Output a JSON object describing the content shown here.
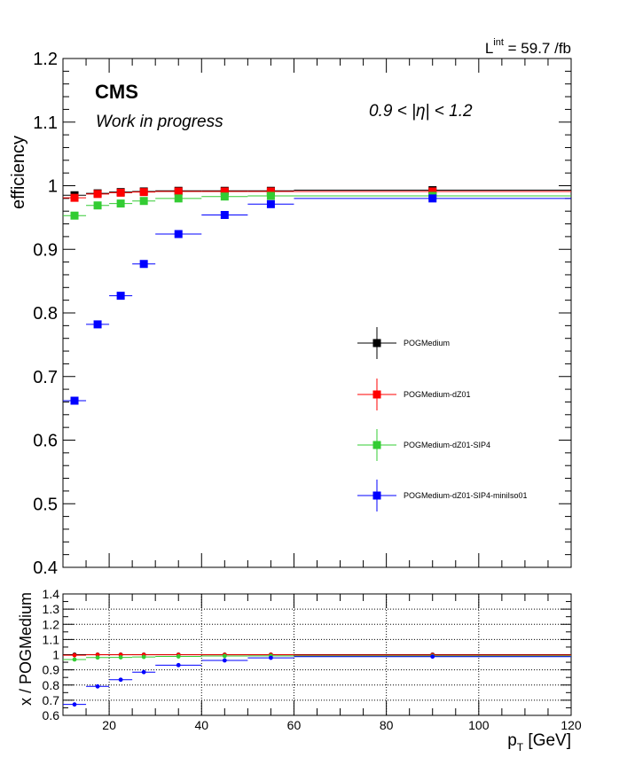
{
  "chart_data": [
    {
      "type": "scatter",
      "panel": "efficiency",
      "ylabel": "efficiency",
      "ylim": [
        0.4,
        1.2
      ],
      "xlim": [
        10,
        120
      ],
      "yticks": [
        "0.4",
        "0.5",
        "0.6",
        "0.7",
        "0.8",
        "0.9",
        "1",
        "1.1",
        "1.2"
      ],
      "lumi_label": "L",
      "lumi_sup": "int",
      "lumi_value": " = 59.7 /fb",
      "experiment": "CMS",
      "status": "Work in progress",
      "eta_label": "0.9 < |η| < 1.2",
      "legend_placement": "right-center",
      "bins": [
        [
          10,
          15
        ],
        [
          15,
          20
        ],
        [
          20,
          25
        ],
        [
          25,
          30
        ],
        [
          30,
          40
        ],
        [
          40,
          50
        ],
        [
          50,
          60
        ],
        [
          60,
          120
        ]
      ],
      "series": [
        {
          "name": "POGMedium",
          "color": "#000000",
          "values": [
            0.985,
            0.988,
            0.99,
            0.991,
            0.992,
            0.992,
            0.992,
            0.993
          ]
        },
        {
          "name": "POGMedium-dZ01",
          "color": "#ff0000",
          "values": [
            0.981,
            0.987,
            0.989,
            0.99,
            0.991,
            0.991,
            0.991,
            0.991
          ]
        },
        {
          "name": "POGMedium-dZ01-SIP4",
          "color": "#33cc33",
          "values": [
            0.953,
            0.969,
            0.972,
            0.976,
            0.98,
            0.983,
            0.984,
            0.984
          ]
        },
        {
          "name": "POGMedium-dZ01-SIP4-miniIso01",
          "color": "#0000ff",
          "values": [
            0.662,
            0.782,
            0.827,
            0.877,
            0.924,
            0.954,
            0.971,
            0.98
          ]
        }
      ]
    },
    {
      "type": "scatter",
      "panel": "ratio",
      "ylabel": "x / POGMedium",
      "ylim": [
        0.6,
        1.4
      ],
      "xlim": [
        10,
        120
      ],
      "xlabel_main": "p",
      "xlabel_sub": "T",
      "xlabel_unit": " [GeV]",
      "xticks": [
        "20",
        "40",
        "60",
        "80",
        "100",
        "120"
      ],
      "yticks": [
        "0.6",
        "0.7",
        "0.8",
        "0.9",
        "1",
        "1.1",
        "1.2",
        "1.3",
        "1.4"
      ],
      "grid": true,
      "bins": [
        [
          10,
          15
        ],
        [
          15,
          20
        ],
        [
          20,
          25
        ],
        [
          25,
          30
        ],
        [
          30,
          40
        ],
        [
          40,
          50
        ],
        [
          50,
          60
        ],
        [
          60,
          120
        ]
      ],
      "series": [
        {
          "name": "POGMedium",
          "color": "#000000",
          "values": [
            1,
            1,
            1,
            1,
            1,
            1,
            1,
            1
          ]
        },
        {
          "name": "POGMedium-dZ01",
          "color": "#ff0000",
          "values": [
            0.996,
            0.999,
            0.999,
            0.999,
            0.999,
            0.999,
            0.999,
            0.998
          ]
        },
        {
          "name": "POGMedium-dZ01-SIP4",
          "color": "#33cc33",
          "values": [
            0.968,
            0.981,
            0.982,
            0.985,
            0.988,
            0.991,
            0.992,
            0.991
          ]
        },
        {
          "name": "POGMedium-dZ01-SIP4-miniIso01",
          "color": "#0000ff",
          "values": [
            0.672,
            0.791,
            0.835,
            0.885,
            0.931,
            0.962,
            0.979,
            0.987
          ]
        }
      ]
    }
  ]
}
